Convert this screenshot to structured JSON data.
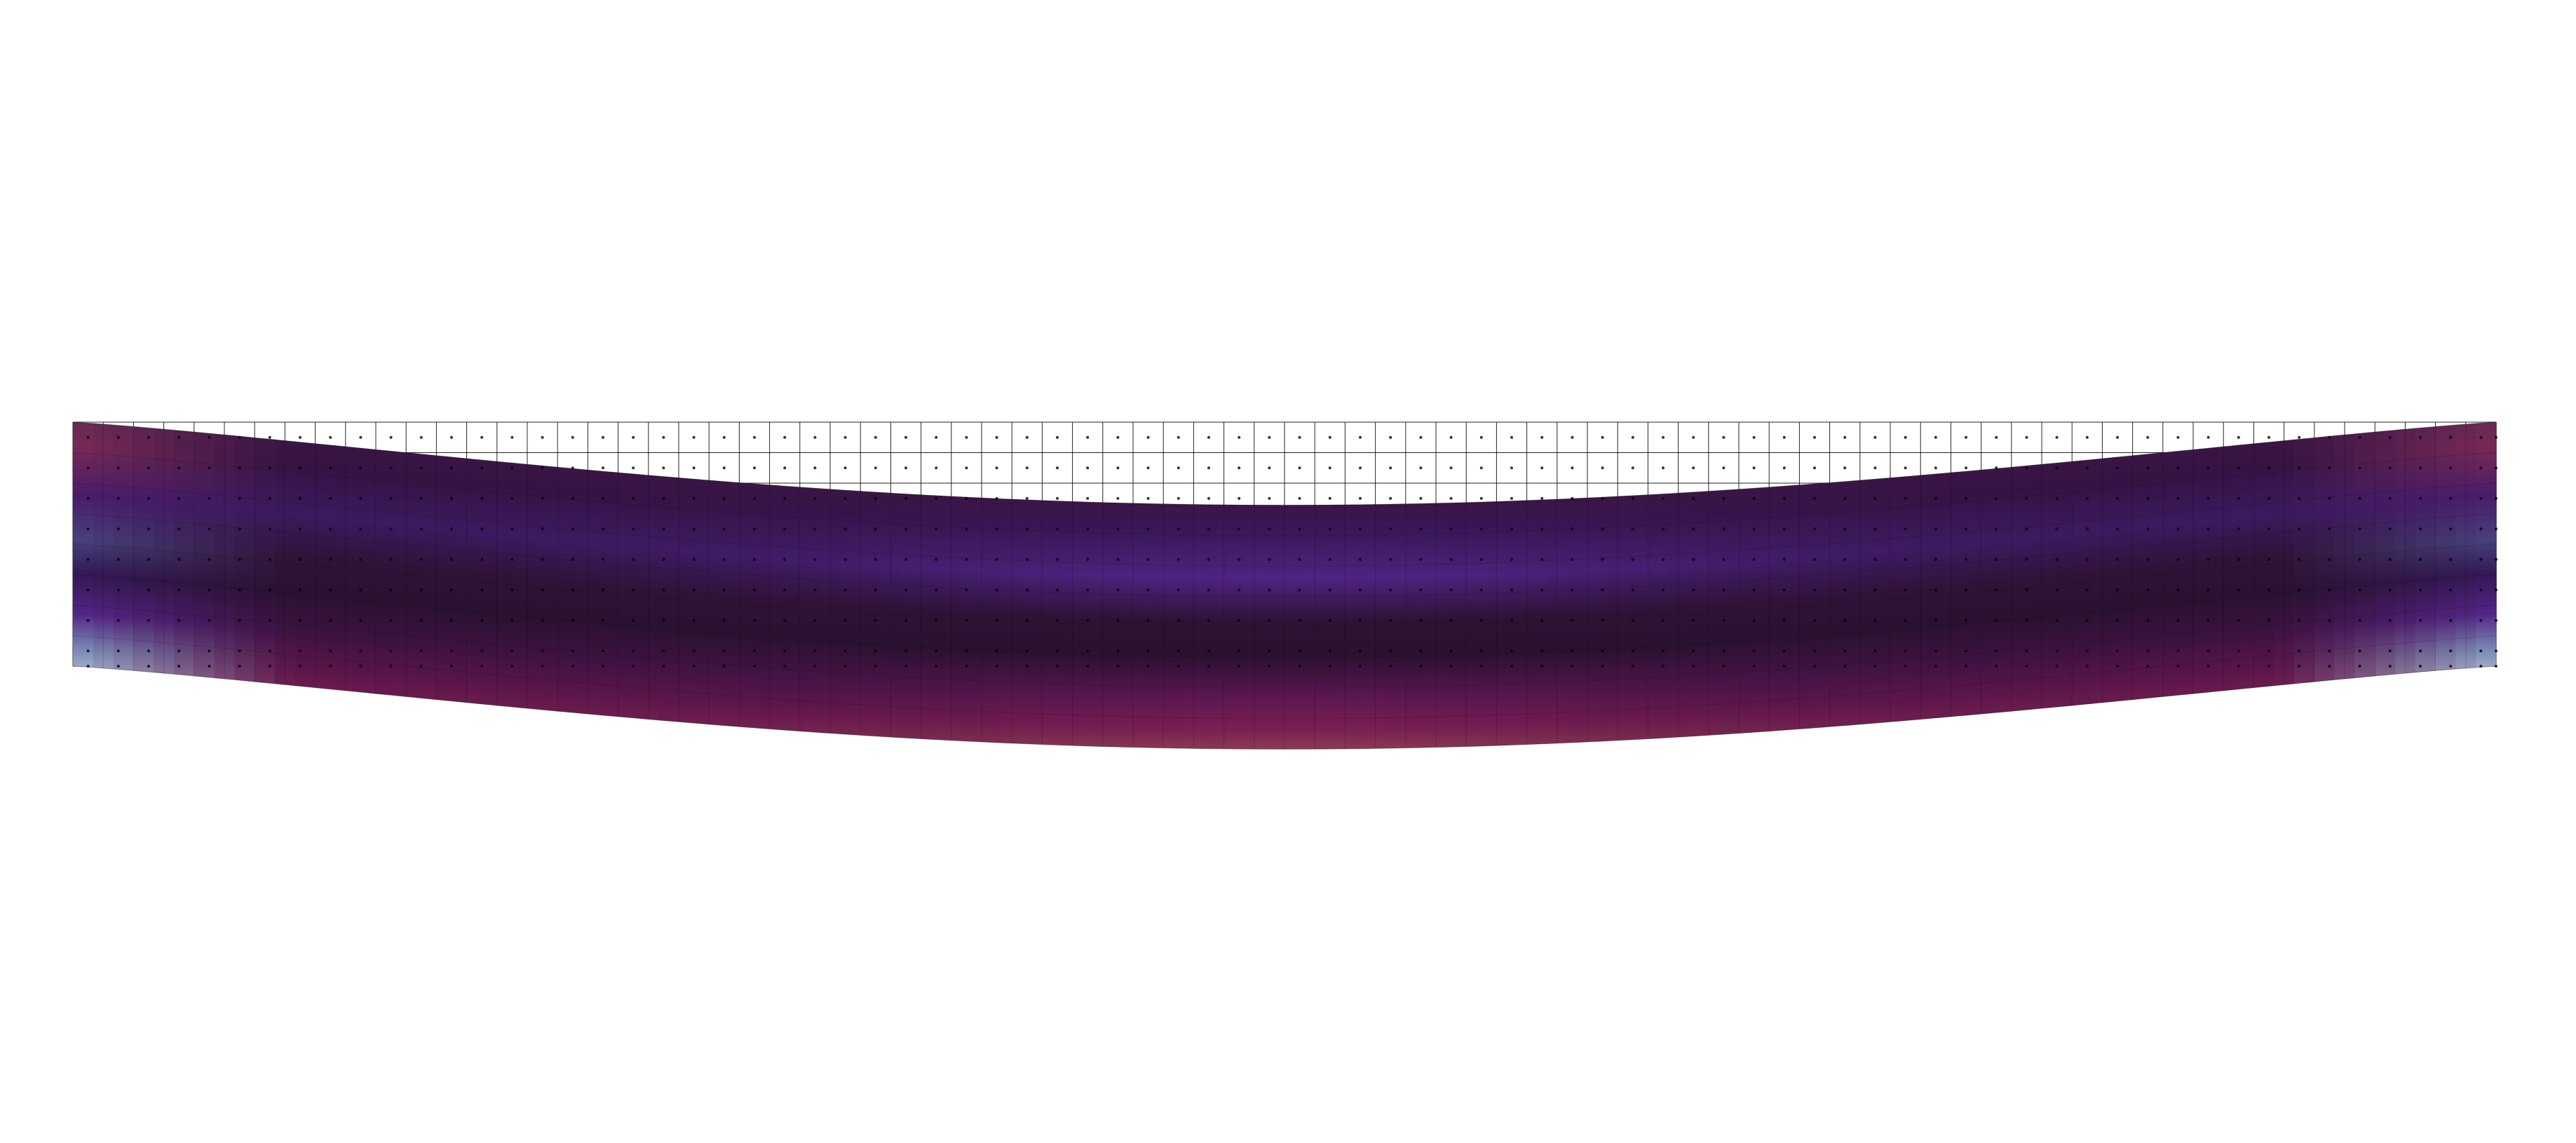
{
  "scene": {
    "kind": "finite-element beam deformation",
    "background": "#ffffff",
    "mesh": {
      "columns": 80,
      "rows": 8,
      "line_color": "#000000",
      "node_color": "#000000"
    },
    "deformation": {
      "shape": "symmetric sag",
      "max_deflection_fraction_of_depth": 0.34
    },
    "colormap": {
      "name": "twilight-like",
      "stops": [
        "#7c98c3",
        "#5a63b0",
        "#4b2078",
        "#2e1233",
        "#3b0f3f",
        "#6b1a55",
        "#8a2b55",
        "#b8685f",
        "#c9a899"
      ]
    }
  }
}
